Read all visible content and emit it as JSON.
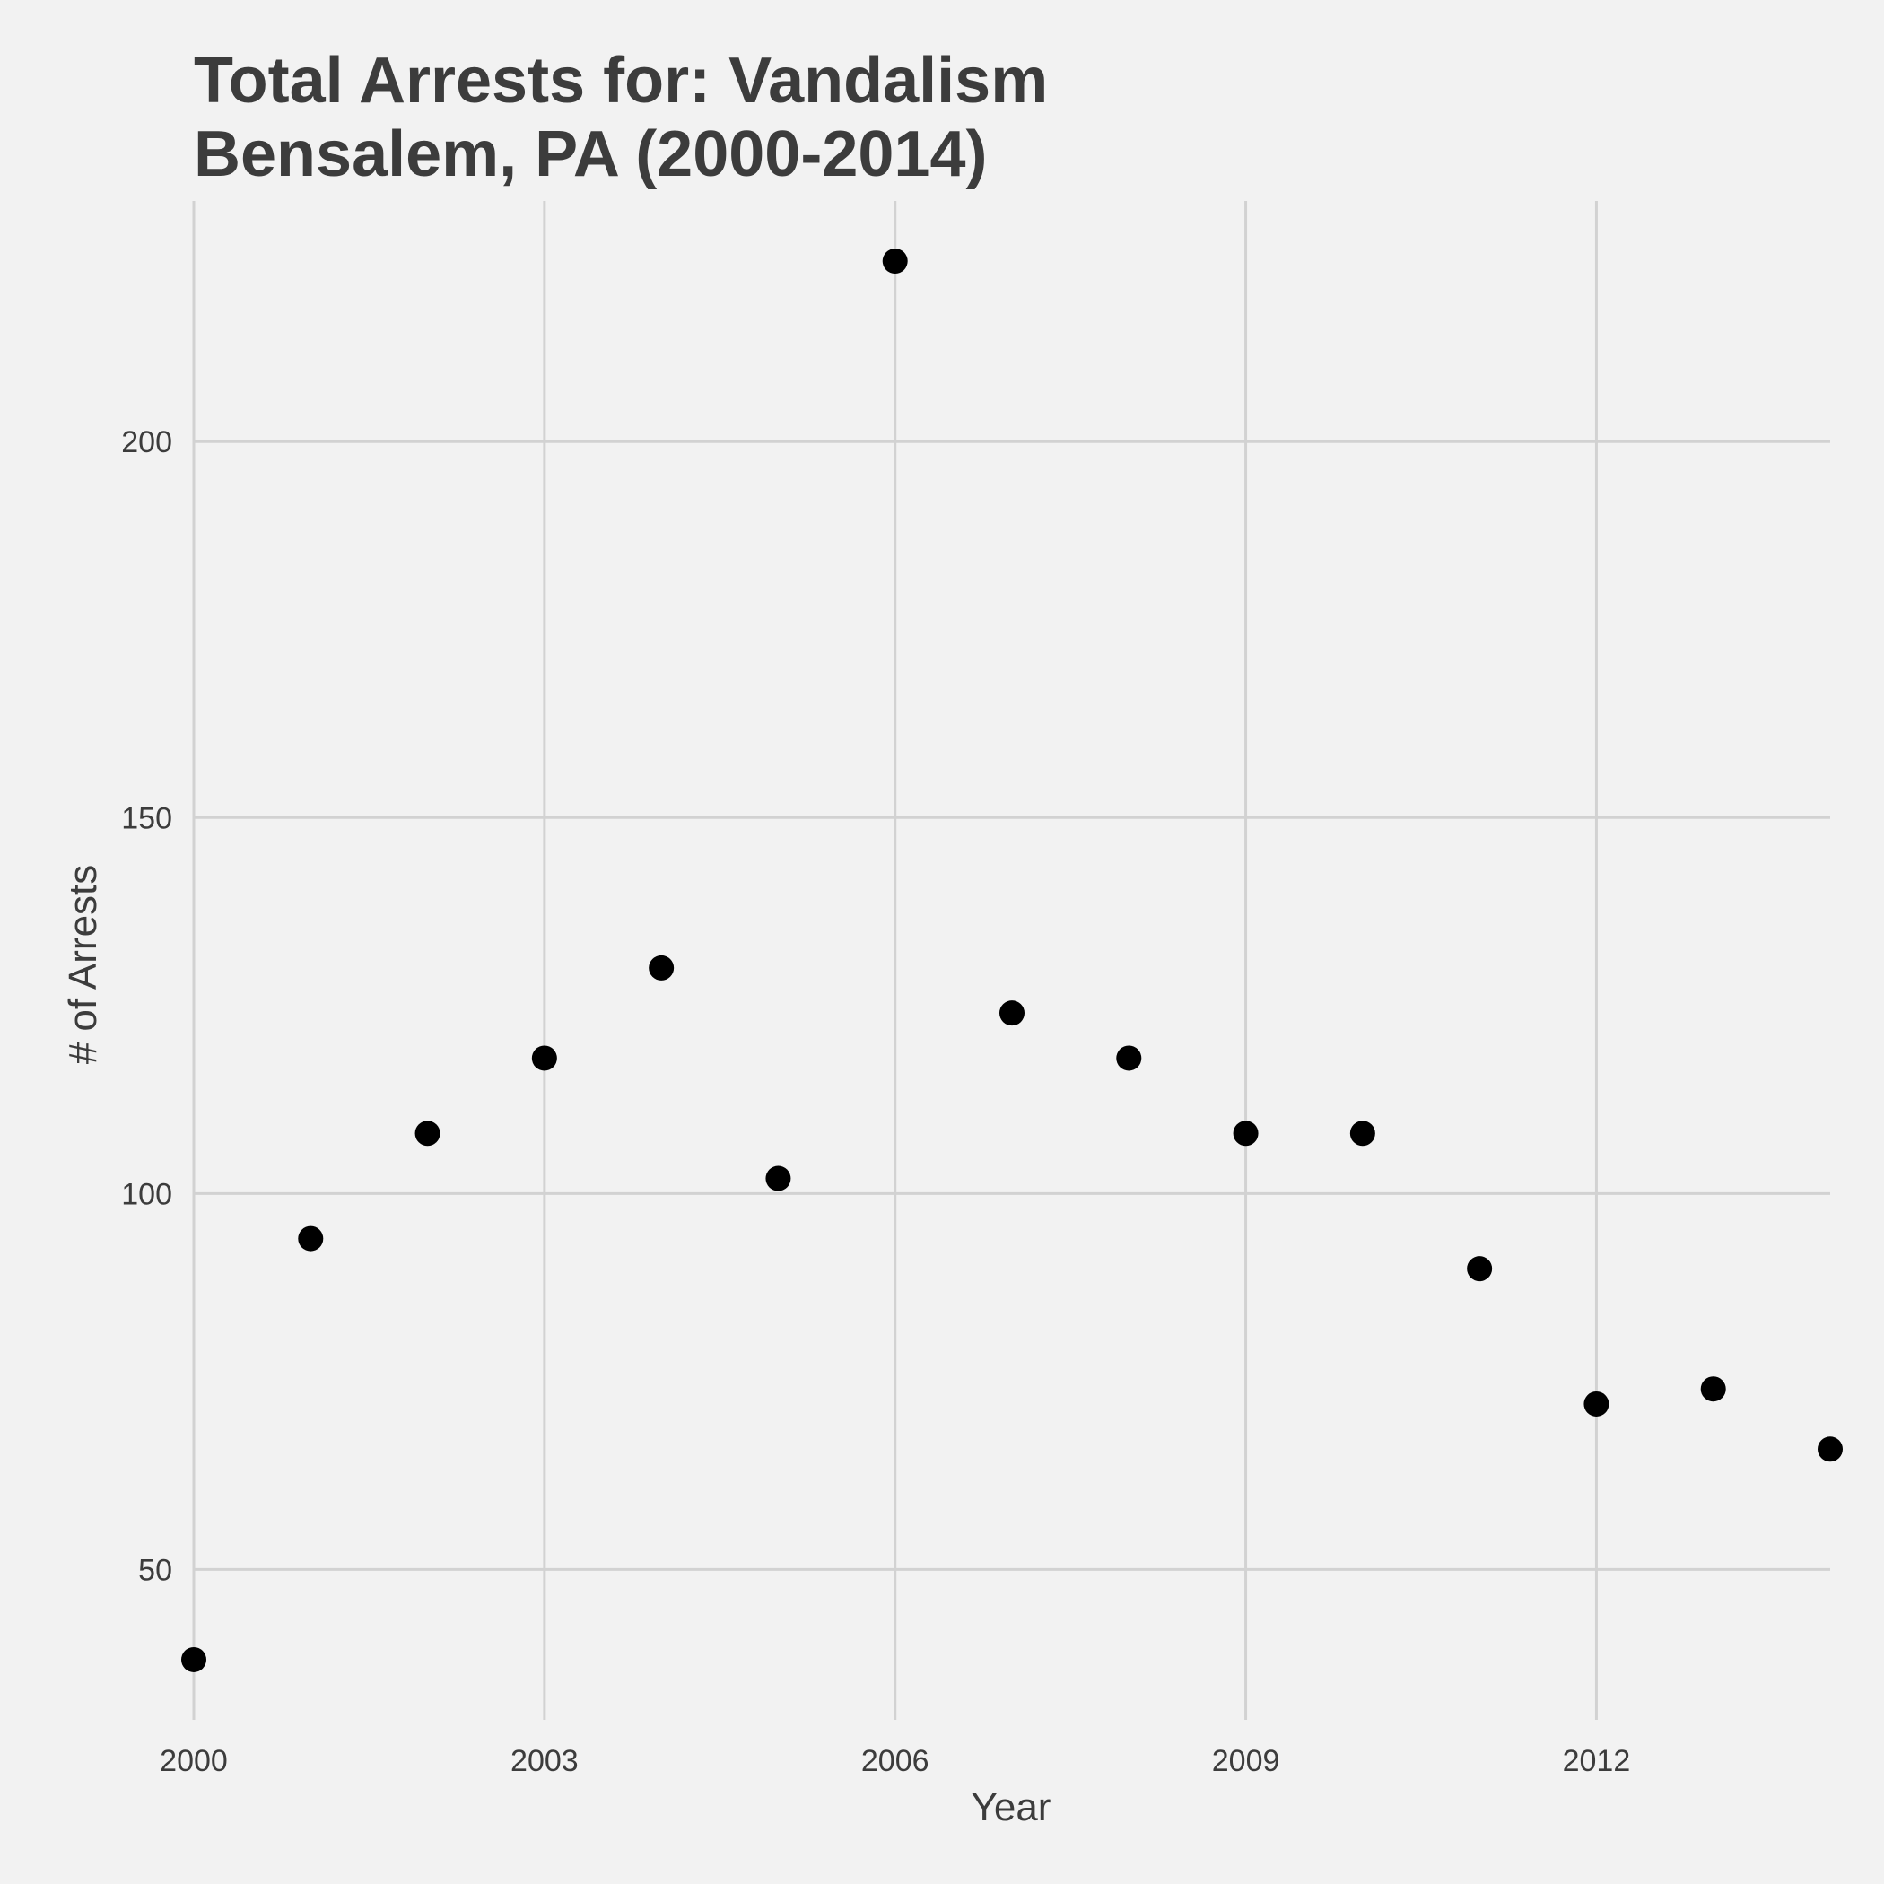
{
  "chart_data": {
    "type": "scatter",
    "title": "Total Arrests for: Vandalism",
    "subtitle": "Bensalem, PA (2000-2014)",
    "xlabel": "Year",
    "ylabel": "# of Arrests",
    "xlim": [
      2000,
      2014
    ],
    "ylim": [
      30,
      232
    ],
    "x_ticks": [
      2000,
      2003,
      2006,
      2009,
      2012
    ],
    "y_ticks": [
      50,
      100,
      150,
      200
    ],
    "grid": true,
    "legend": "none",
    "point_color": "#000000",
    "background_color": "#f2f2f2",
    "grid_color": "#d2d2d2",
    "text_color": "#3c3c3c",
    "points": [
      {
        "x": 2000,
        "y": 38
      },
      {
        "x": 2001,
        "y": 94
      },
      {
        "x": 2002,
        "y": 108
      },
      {
        "x": 2003,
        "y": 118
      },
      {
        "x": 2004,
        "y": 130
      },
      {
        "x": 2005,
        "y": 102
      },
      {
        "x": 2006,
        "y": 224
      },
      {
        "x": 2007,
        "y": 124
      },
      {
        "x": 2008,
        "y": 118
      },
      {
        "x": 2009,
        "y": 108
      },
      {
        "x": 2010,
        "y": 108
      },
      {
        "x": 2011,
        "y": 90
      },
      {
        "x": 2012,
        "y": 72
      },
      {
        "x": 2013,
        "y": 74
      },
      {
        "x": 2014,
        "y": 66
      }
    ]
  }
}
